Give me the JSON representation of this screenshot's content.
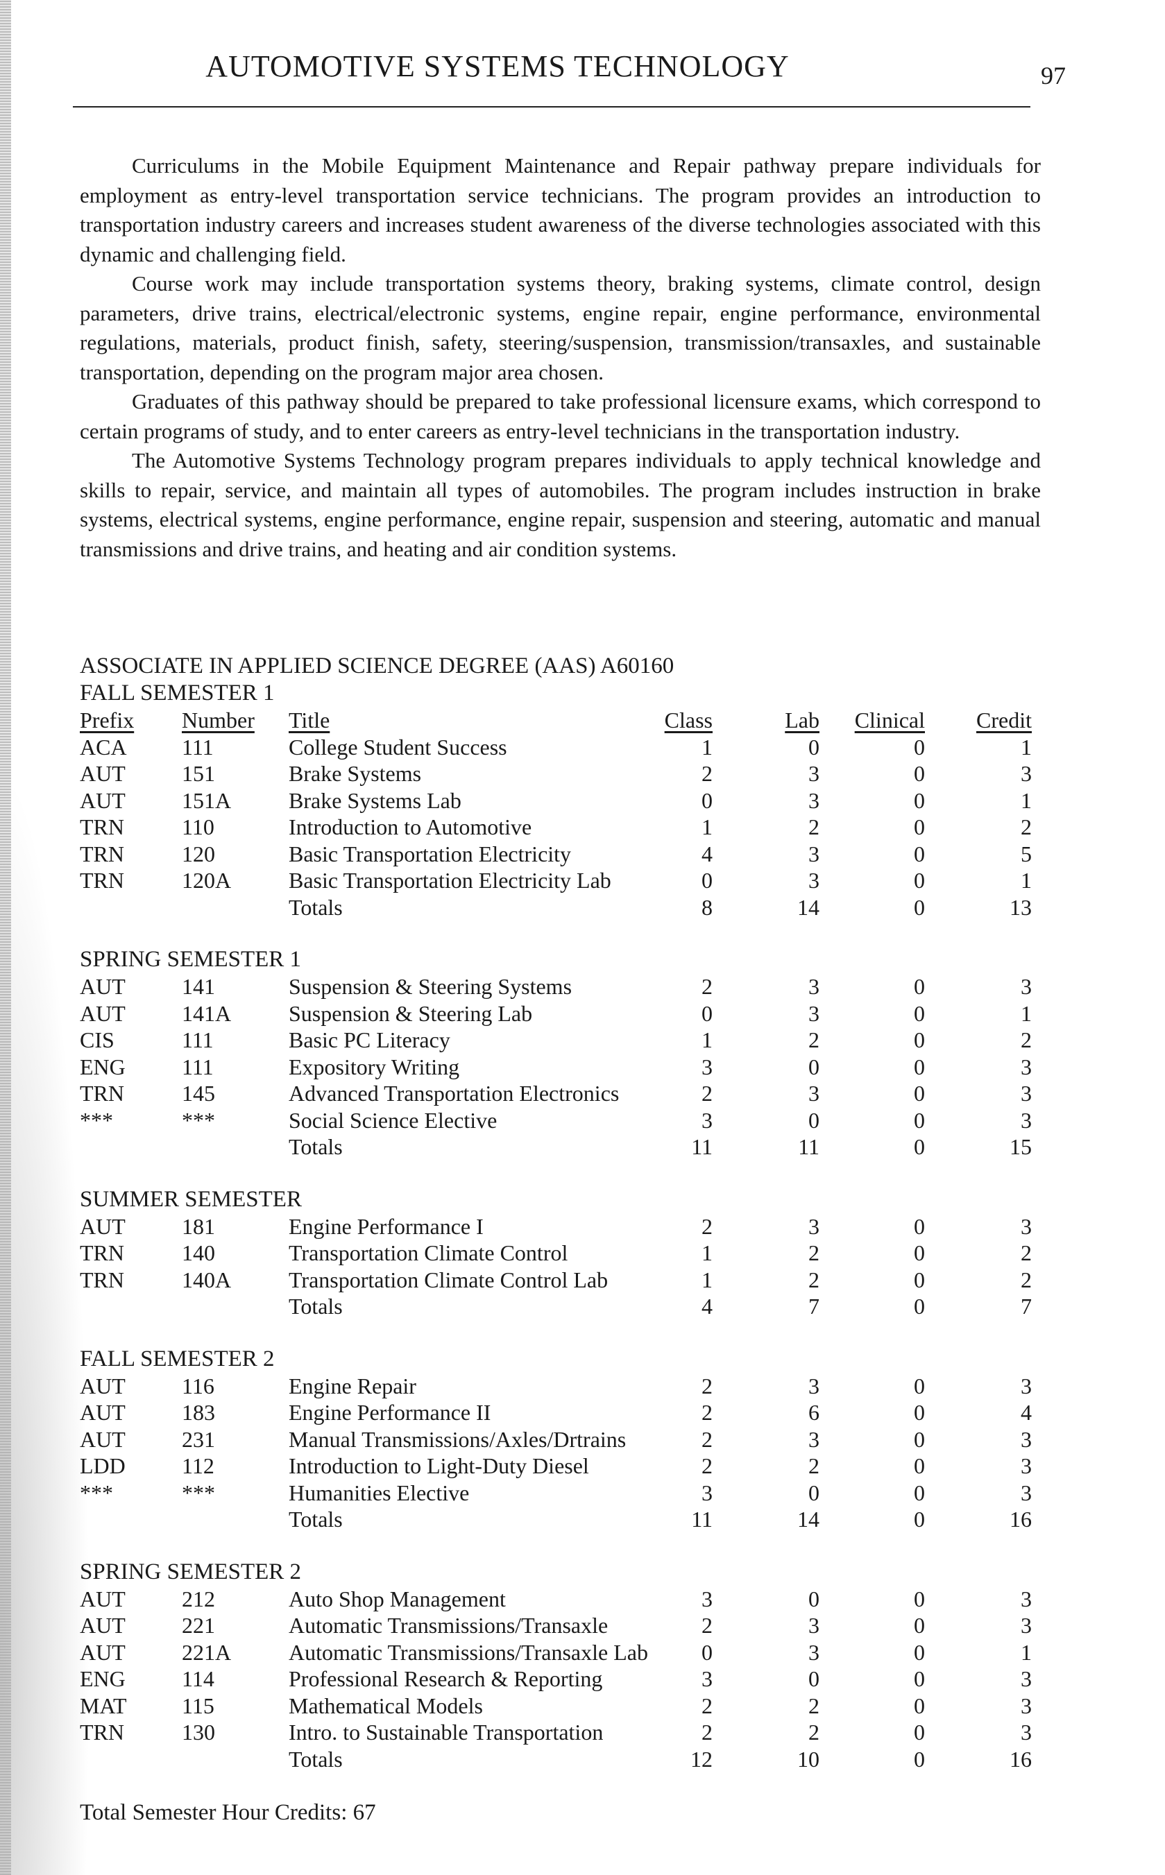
{
  "header": {
    "title": "AUTOMOTIVE SYSTEMS TECHNOLOGY",
    "page_number": "97"
  },
  "intro": [
    "Curriculums in the Mobile Equipment Maintenance and Repair pathway prepare individuals for employment as entry-level transportation service technicians. The program provides an introduction to transportation industry careers and increases student awareness of the diverse technologies associated with this dynamic and challenging field.",
    "Course work may include transportation systems theory, braking systems, climate control, design parameters, drive trains, electrical/electronic systems, engine repair, engine performance, environmental regulations, materials, product finish, safety, steering/suspension, transmission/transaxles, and sustainable transportation, depending on the program major area chosen.",
    "Graduates of this pathway should be prepared to take professional licensure exams, which correspond to certain programs of study, and to enter careers as entry-level technicians in the transportation industry.",
    "The Automotive Systems Technology program prepares individuals to apply technical knowledge and skills to repair, service, and maintain all types of automobiles. The program includes instruction in brake systems, electrical systems, engine performance, engine repair, suspension and steering, automatic and manual transmissions and drive trains, and heating and air condition systems."
  ],
  "degree": "ASSOCIATE IN APPLIED SCIENCE DEGREE (AAS)  A60160",
  "columns": {
    "prefix": "Prefix",
    "number": "Number",
    "title": "Title",
    "class": "Class",
    "lab": "Lab",
    "clinical": "Clinical",
    "credit": "Credit"
  },
  "semesters": [
    {
      "title": "FALL SEMESTER 1",
      "show_columns": true,
      "courses": [
        [
          "ACA",
          "111",
          "College Student Success",
          "1",
          "0",
          "0",
          "1"
        ],
        [
          "AUT",
          "151",
          "Brake Systems",
          "2",
          "3",
          "0",
          "3"
        ],
        [
          "AUT",
          "151A",
          "Brake Systems Lab",
          "0",
          "3",
          "0",
          "1"
        ],
        [
          "TRN",
          "110",
          "Introduction to Automotive",
          "1",
          "2",
          "0",
          "2"
        ],
        [
          "TRN",
          "120",
          "Basic Transportation Electricity",
          "4",
          "3",
          "0",
          "5"
        ],
        [
          "TRN",
          "120A",
          "Basic Transportation Electricity Lab",
          "0",
          "3",
          "0",
          "1"
        ]
      ],
      "totals": [
        "",
        "",
        "Totals",
        "8",
        "14",
        "0",
        "13"
      ]
    },
    {
      "title": "SPRING SEMESTER 1",
      "courses": [
        [
          "AUT",
          "141",
          "Suspension & Steering Systems",
          "2",
          "3",
          "0",
          "3"
        ],
        [
          "AUT",
          "141A",
          "Suspension & Steering Lab",
          "0",
          "3",
          "0",
          "1"
        ],
        [
          "CIS",
          "111",
          "Basic PC Literacy",
          "1",
          "2",
          "0",
          "2"
        ],
        [
          "ENG",
          "111",
          "Expository Writing",
          "3",
          "0",
          "0",
          "3"
        ],
        [
          "TRN",
          "145",
          "Advanced Transportation Electronics",
          "2",
          "3",
          "0",
          "3"
        ],
        [
          "***",
          "***",
          "Social Science Elective",
          "3",
          "0",
          "0",
          "3"
        ]
      ],
      "totals": [
        "",
        "",
        "Totals",
        "11",
        "11",
        "0",
        "15"
      ]
    },
    {
      "title": "SUMMER SEMESTER",
      "courses": [
        [
          "AUT",
          "181",
          "Engine Performance I",
          "2",
          "3",
          "0",
          "3"
        ],
        [
          "TRN",
          "140",
          "Transportation Climate Control",
          "1",
          "2",
          "0",
          "2"
        ],
        [
          "TRN",
          "140A",
          "Transportation Climate Control Lab",
          "1",
          "2",
          "0",
          "2"
        ]
      ],
      "totals": [
        "",
        "",
        "Totals",
        "4",
        "7",
        "0",
        "7"
      ]
    },
    {
      "title": "FALL SEMESTER 2",
      "courses": [
        [
          "AUT",
          "116",
          "Engine Repair",
          "2",
          "3",
          "0",
          "3"
        ],
        [
          "AUT",
          "183",
          "Engine Performance II",
          "2",
          "6",
          "0",
          "4"
        ],
        [
          "AUT",
          "231",
          "Manual Transmissions/Axles/Drtrains",
          "2",
          "3",
          "0",
          "3"
        ],
        [
          "LDD",
          "112",
          "Introduction to Light-Duty Diesel",
          "2",
          "2",
          "0",
          "3"
        ],
        [
          "***",
          "***",
          "Humanities Elective",
          "3",
          "0",
          "0",
          "3"
        ]
      ],
      "totals": [
        "",
        "",
        "Totals",
        "11",
        "14",
        "0",
        "16"
      ]
    },
    {
      "title": "SPRING SEMESTER 2",
      "courses": [
        [
          "AUT",
          "212",
          "Auto Shop Management",
          "3",
          "0",
          "0",
          "3"
        ],
        [
          "AUT",
          "221",
          "Automatic Transmissions/Transaxle",
          "2",
          "3",
          "0",
          "3"
        ],
        [
          "AUT",
          "221A",
          "Automatic Transmissions/Transaxle Lab",
          "0",
          "3",
          "0",
          "1"
        ],
        [
          "ENG",
          "114",
          "Professional Research & Reporting",
          "3",
          "0",
          "0",
          "3"
        ],
        [
          "MAT",
          "115",
          "Mathematical Models",
          "2",
          "2",
          "0",
          "3"
        ],
        [
          "TRN",
          "130",
          "Intro. to Sustainable Transportation",
          "2",
          "2",
          "0",
          "3"
        ]
      ],
      "totals": [
        "",
        "",
        "Totals",
        "12",
        "10",
        "0",
        "16"
      ]
    }
  ],
  "total_credits": "Total Semester Hour Credits: 67"
}
